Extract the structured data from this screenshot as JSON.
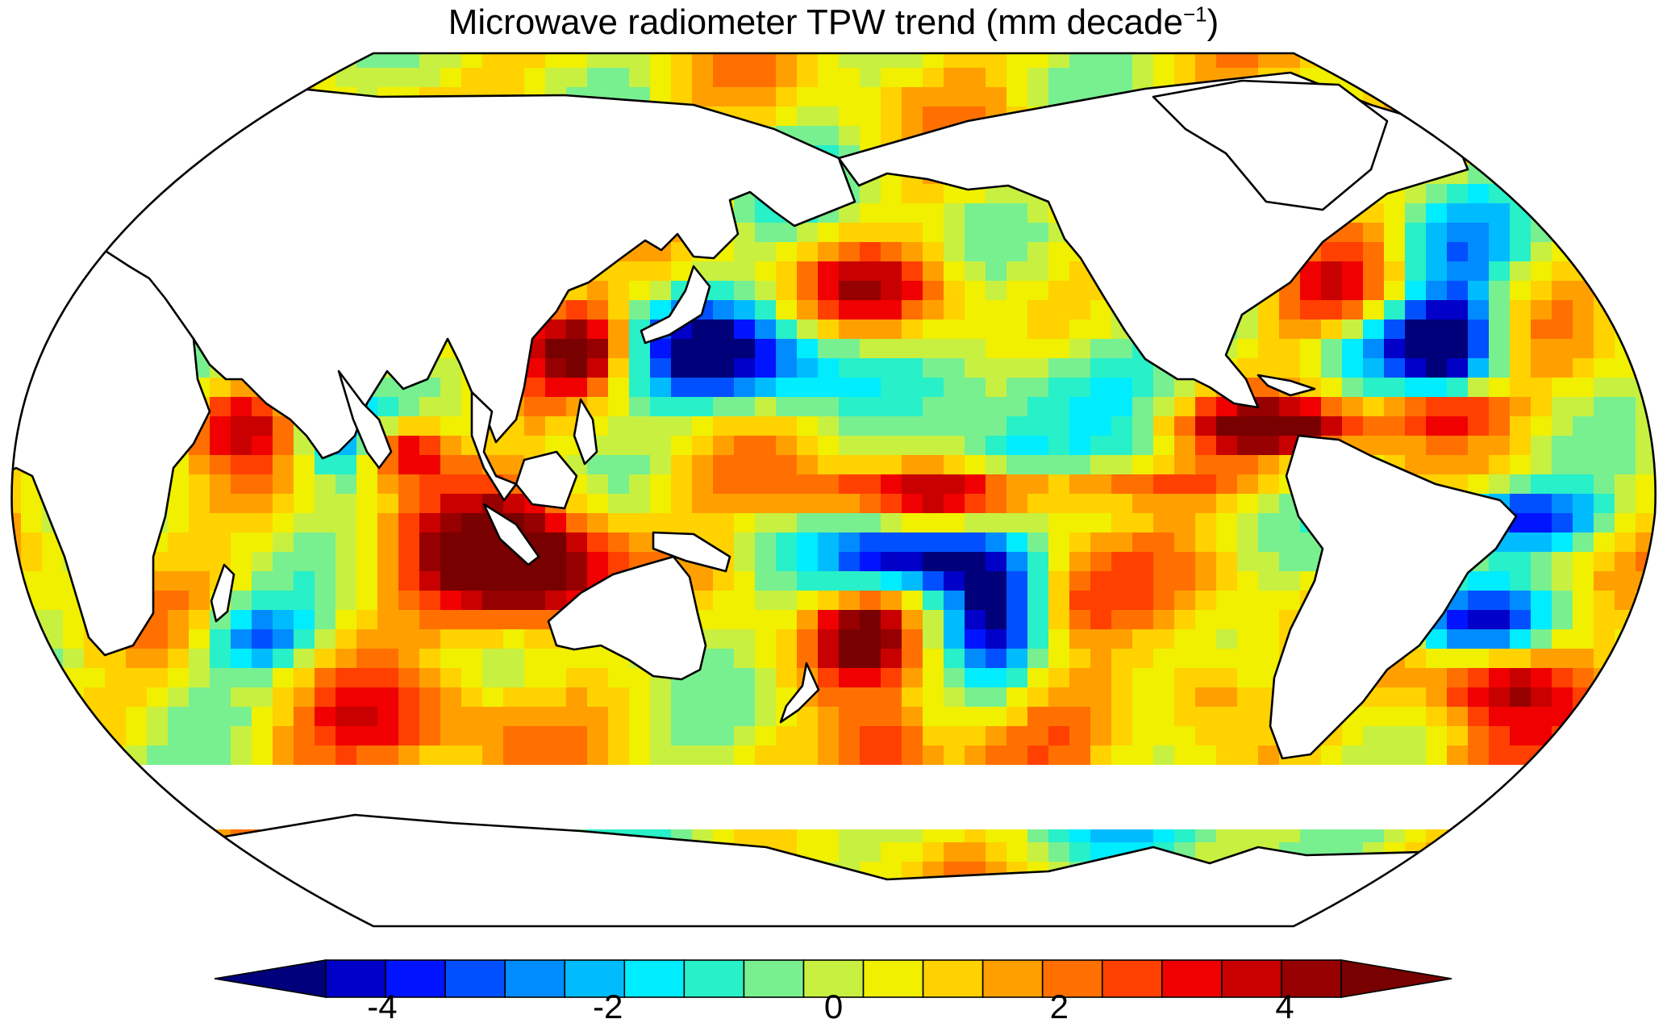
{
  "figure": {
    "title_main": "Microwave radiometer TPW trend (mm decade",
    "title_exp": "−1",
    "title_close": ")"
  },
  "colorbar": {
    "tick_labels": [
      "-4",
      "-2",
      "0",
      "2",
      "4"
    ],
    "tick_values": [
      -4,
      -2,
      0,
      2,
      4
    ],
    "range": [
      -5,
      5
    ],
    "step": 0.5,
    "extend": "both",
    "palette": [
      "#00007a",
      "#0000c8",
      "#0014ff",
      "#0050ff",
      "#008cff",
      "#00bcff",
      "#00ecff",
      "#28f0c8",
      "#78f090",
      "#c8f040",
      "#f0f000",
      "#ffd200",
      "#ffa000",
      "#ff7000",
      "#ff4000",
      "#f00000",
      "#c80000",
      "#960000",
      "#780000"
    ]
  },
  "map": {
    "projection": "Robinson",
    "central_longitude": "180E",
    "ocean_shading": "trend field",
    "land_color": "#ffffff",
    "no_data_color": "#ffffff"
  }
}
